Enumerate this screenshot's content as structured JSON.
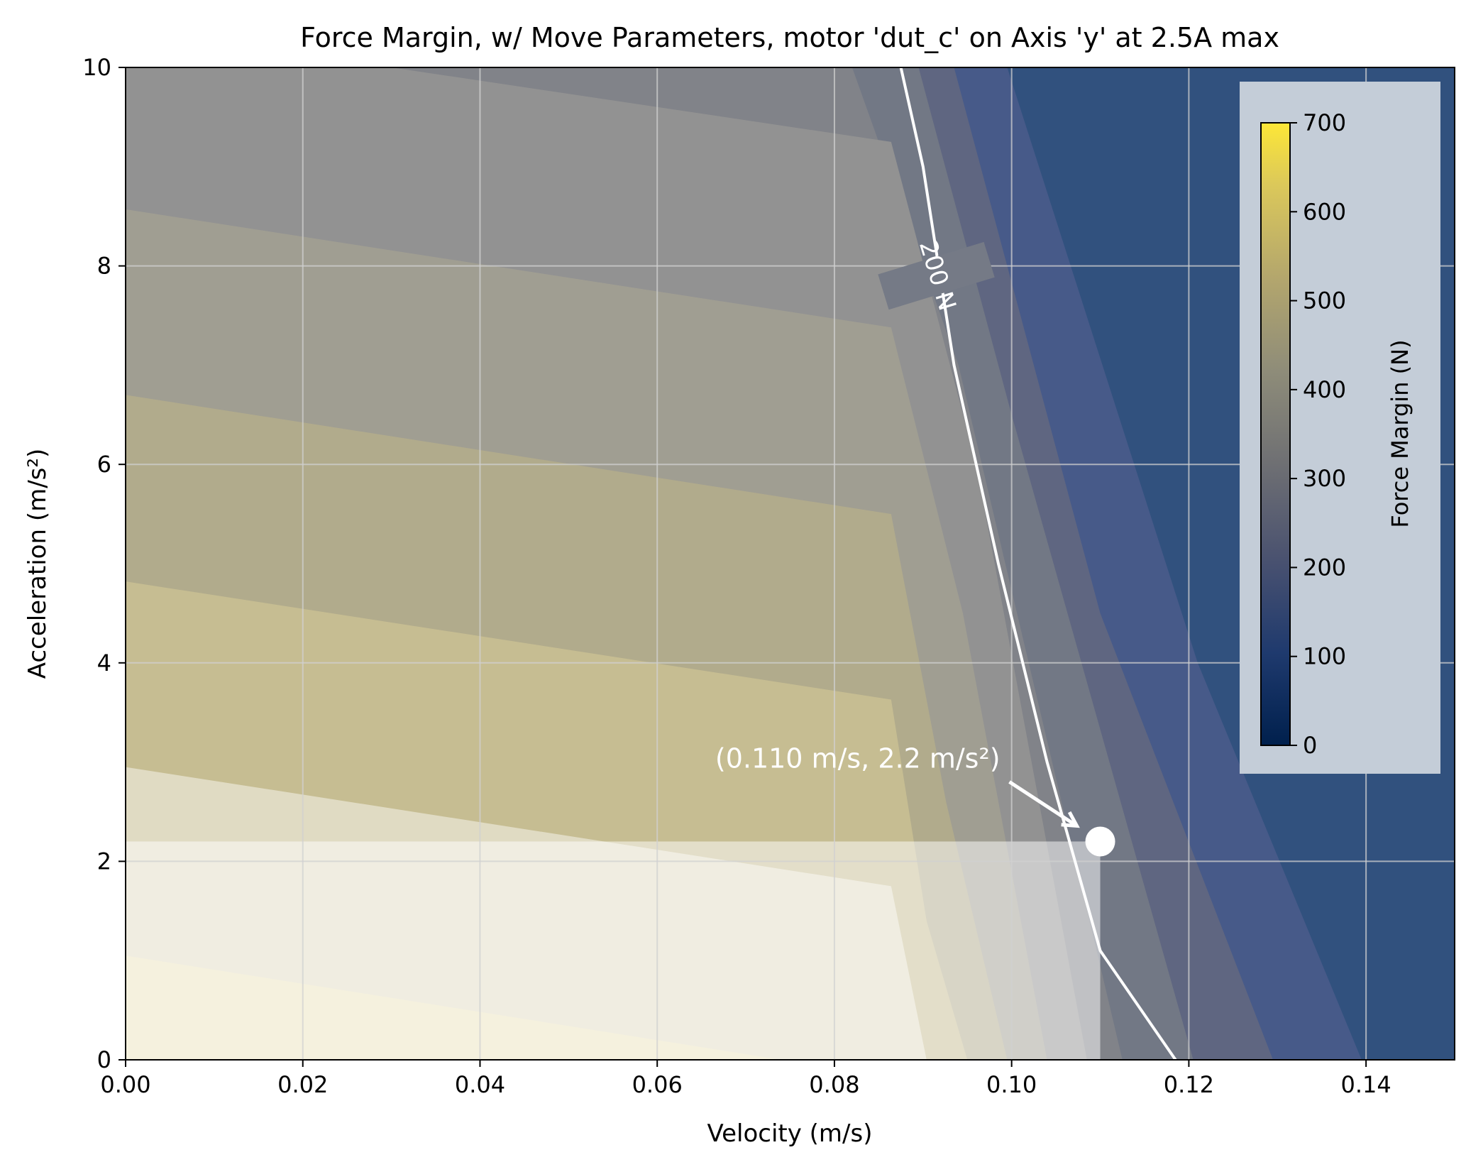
{
  "chart_data": {
    "type": "contourf",
    "title": "Force Margin, w/ Move Parameters, motor 'dut_c' on Axis 'y' at 2.5A max",
    "xlabel": "Velocity (m/s)",
    "ylabel": "Acceleration (m/s²)",
    "xlim": [
      0.0,
      0.15
    ],
    "ylim": [
      0,
      10
    ],
    "xticks": [
      "0.00",
      "0.02",
      "0.04",
      "0.06",
      "0.08",
      "0.10",
      "0.12",
      "0.14"
    ],
    "yticks": [
      "0",
      "2",
      "4",
      "6",
      "8",
      "10"
    ],
    "grid": true,
    "colormap": "cividis",
    "colorbar": {
      "label": "Force Margin (N)",
      "range": [
        0,
        700
      ],
      "ticks": [
        "0",
        "100",
        "200",
        "300",
        "400",
        "500",
        "600",
        "700"
      ],
      "placement": "top-right"
    },
    "bands": [
      {
        "level": 660,
        "color": "#ebe2bc",
        "boundary": [
          [
            0.0,
            1.05
          ],
          [
            0.074,
            0.0
          ]
        ]
      },
      {
        "level": 600,
        "color": "#e0dbc3",
        "boundary": [
          [
            0.0,
            2.95
          ],
          [
            0.0864,
            1.75
          ],
          [
            0.0904,
            0.0
          ]
        ]
      },
      {
        "level": 540,
        "color": "#c6bd92",
        "boundary": [
          [
            0.0,
            4.82
          ],
          [
            0.0864,
            3.63
          ],
          [
            0.0904,
            1.4
          ],
          [
            0.095,
            0.0
          ]
        ]
      },
      {
        "level": 480,
        "color": "#b1ab8c",
        "boundary": [
          [
            0.0,
            6.7
          ],
          [
            0.0864,
            5.5
          ],
          [
            0.0926,
            2.6
          ],
          [
            0.0995,
            0.0
          ]
        ]
      },
      {
        "level": 420,
        "color": "#a09e92",
        "boundary": [
          [
            0.0,
            8.57
          ],
          [
            0.0864,
            7.38
          ],
          [
            0.0945,
            4.5
          ],
          [
            0.104,
            0.0
          ]
        ]
      },
      {
        "level": 360,
        "color": "#929292",
        "boundary": [
          [
            0.03,
            10.0
          ],
          [
            0.0864,
            9.25
          ],
          [
            0.096,
            6.0
          ],
          [
            0.1085,
            0.0
          ]
        ]
      },
      {
        "level": 300,
        "color": "#818389",
        "boundary": [
          [
            0.082,
            10.0
          ],
          [
            0.094,
            7.0
          ],
          [
            0.1125,
            0.0
          ]
        ]
      },
      {
        "level": 240,
        "color": "#727885",
        "boundary": [
          [
            0.0895,
            10.0
          ],
          [
            0.1,
            6.5
          ],
          [
            0.1205,
            0.0
          ]
        ]
      },
      {
        "level": 180,
        "color": "#5f6681",
        "boundary": [
          [
            0.0935,
            10.0
          ],
          [
            0.11,
            4.5
          ],
          [
            0.1295,
            0.0
          ]
        ]
      },
      {
        "level": 120,
        "color": "#475a89",
        "boundary": [
          [
            0.0995,
            10.0
          ],
          [
            0.121,
            4.0
          ],
          [
            0.1395,
            0.0
          ]
        ]
      },
      {
        "level": 60,
        "color": "#31517e",
        "boundary": [
          [
            0.15,
            10.0
          ],
          [
            0.15,
            0.0
          ]
        ]
      }
    ],
    "contour_line": {
      "label": "200 N",
      "points": [
        [
          0.0875,
          10.0
        ],
        [
          0.09,
          9.0
        ],
        [
          0.0935,
          7.0
        ],
        [
          0.0985,
          5.0
        ],
        [
          0.104,
          3.0
        ],
        [
          0.11,
          1.1
        ],
        [
          0.1185,
          0.0
        ]
      ],
      "color": "#ffffff"
    },
    "operating_point": {
      "x": 0.11,
      "y": 2.2,
      "label": "(0.110 m/s, 2.2 m/s²)",
      "region_fill": "#ffffff",
      "region_opacity": 0.5
    }
  }
}
